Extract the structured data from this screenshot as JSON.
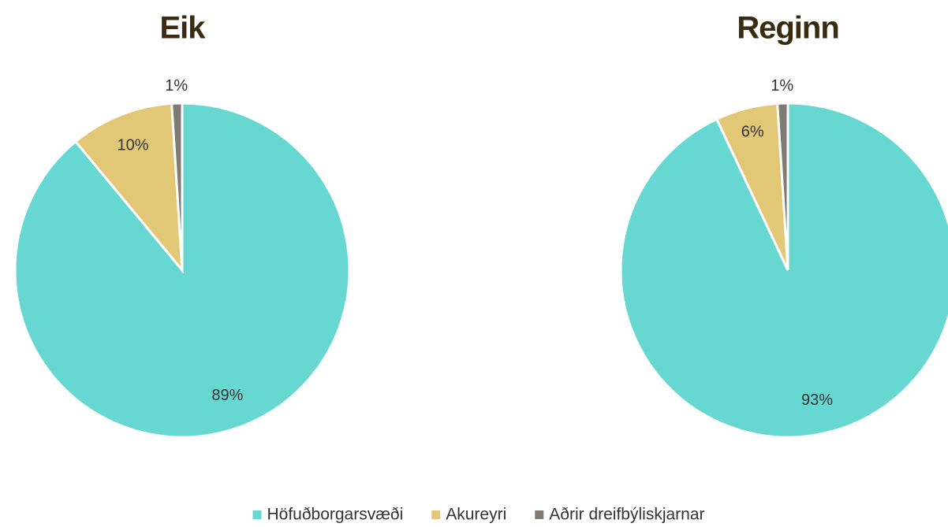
{
  "chart_data": [
    {
      "type": "pie",
      "title": "Eik",
      "categories": [
        "Höfuðborgarsvæði",
        "Akureyri",
        "Aðrir dreifbýliskjarnar"
      ],
      "values": [
        89,
        10,
        1
      ],
      "value_labels": [
        "89%",
        "10%",
        "1%"
      ],
      "colors": [
        "#66d7d1",
        "#e2c876",
        "#7f7a72"
      ],
      "legend": "bottom"
    },
    {
      "type": "pie",
      "title": "Reginn",
      "categories": [
        "Höfuðborgarsvæði",
        "Akureyri",
        "Aðrir dreifbýliskjarnar"
      ],
      "values": [
        93,
        6,
        1
      ],
      "value_labels": [
        "93%",
        "6%",
        "1%"
      ],
      "colors": [
        "#66d7d1",
        "#e2c876",
        "#7f7a72"
      ],
      "legend": "bottom"
    }
  ]
}
